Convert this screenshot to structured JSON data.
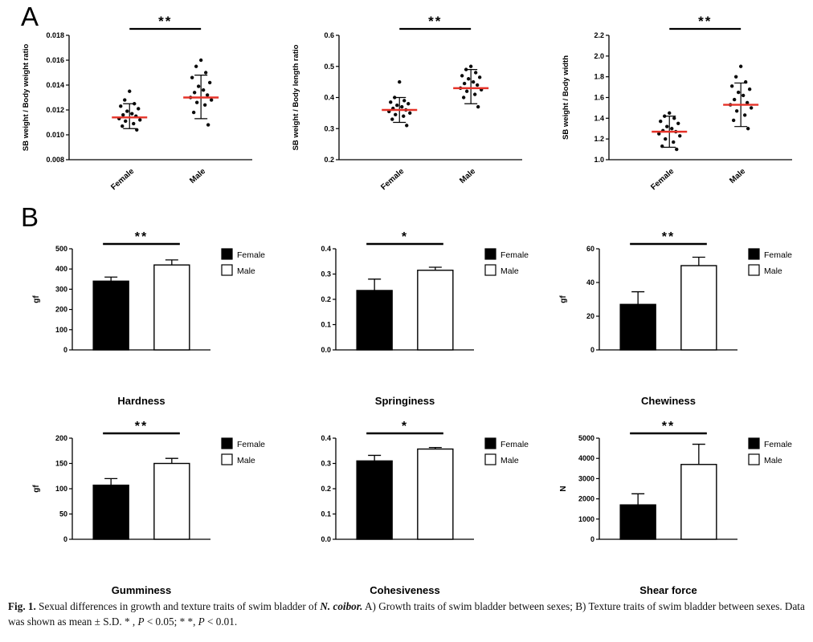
{
  "panels": {
    "a_label": "A",
    "b_label": "B"
  },
  "colors": {
    "female_fill": "#000000",
    "male_fill": "#ffffff",
    "mean_line": "#e53228",
    "axis": "#000000"
  },
  "caption": {
    "segments": [
      {
        "text": "Fig. 1.",
        "style": "bold"
      },
      {
        "text": "  Sexual differences in growth and texture traits of swim bladder of ",
        "style": "normal"
      },
      {
        "text": "N. coibor.",
        "style": "bold-italic"
      },
      {
        "text": " A) Growth traits of swim bladder between sexes; B) Texture traits of swim bladder between sexes. Data was shown as mean ± S.D. * , ",
        "style": "normal"
      },
      {
        "text": "P",
        "style": "italic"
      },
      {
        "text": " < 0.05; * *, ",
        "style": "normal"
      },
      {
        "text": "P",
        "style": "italic"
      },
      {
        "text": " < 0.01.",
        "style": "normal"
      }
    ]
  },
  "chart_data": [
    {
      "id": "sb-weight-body-weight-ratio",
      "panel": "A",
      "type": "scatter",
      "ylabel": "SB weight / Body weight ratio",
      "ylim": [
        0.008,
        0.018
      ],
      "yticks": [
        0.008,
        0.01,
        0.012,
        0.014,
        0.016,
        0.018
      ],
      "ytick_decimals": 3,
      "categories": [
        "Female",
        "Male"
      ],
      "significance": "**",
      "groups": [
        {
          "name": "Female",
          "mean": 0.0114,
          "sd_low": 0.0105,
          "sd_high": 0.0125,
          "points": [
            0.0135,
            0.0128,
            0.0125,
            0.0123,
            0.0121,
            0.0119,
            0.0117,
            0.0116,
            0.0115,
            0.0113,
            0.0112,
            0.0111,
            0.0109,
            0.0107,
            0.0104
          ]
        },
        {
          "name": "Male",
          "mean": 0.013,
          "sd_low": 0.0113,
          "sd_high": 0.0148,
          "points": [
            0.016,
            0.0155,
            0.015,
            0.0146,
            0.0142,
            0.0139,
            0.0136,
            0.0134,
            0.0132,
            0.013,
            0.0128,
            0.0126,
            0.0124,
            0.0118,
            0.0108
          ]
        }
      ]
    },
    {
      "id": "sb-weight-body-length-ratio",
      "panel": "A",
      "type": "scatter",
      "ylabel": "SB weight / Body length ratio",
      "ylim": [
        0.2,
        0.6
      ],
      "yticks": [
        0.2,
        0.3,
        0.4,
        0.5,
        0.6
      ],
      "ytick_decimals": 1,
      "categories": [
        "Female",
        "Male"
      ],
      "significance": "**",
      "groups": [
        {
          "name": "Female",
          "mean": 0.36,
          "sd_low": 0.32,
          "sd_high": 0.4,
          "points": [
            0.45,
            0.4,
            0.39,
            0.385,
            0.38,
            0.375,
            0.37,
            0.365,
            0.36,
            0.355,
            0.35,
            0.345,
            0.34,
            0.33,
            0.31
          ]
        },
        {
          "name": "Male",
          "mean": 0.43,
          "sd_low": 0.38,
          "sd_high": 0.49,
          "points": [
            0.5,
            0.49,
            0.48,
            0.47,
            0.465,
            0.46,
            0.45,
            0.445,
            0.44,
            0.43,
            0.425,
            0.42,
            0.41,
            0.4,
            0.37
          ]
        }
      ]
    },
    {
      "id": "sb-weight-body-width",
      "panel": "A",
      "type": "scatter",
      "ylabel": "SB weight / Body width",
      "ylim": [
        1.0,
        2.2
      ],
      "yticks": [
        1.0,
        1.2,
        1.4,
        1.6,
        1.8,
        2.0,
        2.2
      ],
      "ytick_decimals": 1,
      "categories": [
        "Female",
        "Male"
      ],
      "significance": "**",
      "groups": [
        {
          "name": "Female",
          "mean": 1.27,
          "sd_low": 1.12,
          "sd_high": 1.42,
          "points": [
            1.45,
            1.42,
            1.4,
            1.37,
            1.35,
            1.32,
            1.3,
            1.28,
            1.27,
            1.25,
            1.23,
            1.2,
            1.17,
            1.13,
            1.1
          ]
        },
        {
          "name": "Male",
          "mean": 1.53,
          "sd_low": 1.32,
          "sd_high": 1.74,
          "points": [
            1.9,
            1.8,
            1.75,
            1.71,
            1.68,
            1.65,
            1.62,
            1.58,
            1.55,
            1.53,
            1.5,
            1.47,
            1.43,
            1.38,
            1.3
          ]
        }
      ]
    },
    {
      "id": "hardness",
      "panel": "B",
      "type": "bar",
      "title": "Hardness",
      "ylabel": "gf",
      "ylim": [
        0,
        500
      ],
      "yticks": [
        0,
        100,
        200,
        300,
        400,
        500
      ],
      "ytick_decimals": 0,
      "categories": [
        "Female",
        "Male"
      ],
      "values": [
        340,
        420
      ],
      "errors": [
        20,
        25
      ],
      "significance": "**",
      "legend": [
        "Female",
        "Male"
      ]
    },
    {
      "id": "springiness",
      "panel": "B",
      "type": "bar",
      "title": "Springiness",
      "ylabel": "",
      "ylim": [
        0,
        0.4
      ],
      "yticks": [
        0.0,
        0.1,
        0.2,
        0.3,
        0.4
      ],
      "ytick_decimals": 1,
      "categories": [
        "Female",
        "Male"
      ],
      "values": [
        0.235,
        0.315
      ],
      "errors": [
        0.045,
        0.012
      ],
      "significance": "*",
      "legend": [
        "Female",
        "Male"
      ]
    },
    {
      "id": "chewiness",
      "panel": "B",
      "type": "bar",
      "title": "Chewiness",
      "ylabel": "gf",
      "ylim": [
        0,
        60
      ],
      "yticks": [
        0,
        20,
        40,
        60
      ],
      "ytick_decimals": 0,
      "categories": [
        "Female",
        "Male"
      ],
      "values": [
        27,
        50
      ],
      "errors": [
        7.5,
        5
      ],
      "significance": "**",
      "legend": [
        "Female",
        "Male"
      ]
    },
    {
      "id": "gumminess",
      "panel": "B",
      "type": "bar",
      "title": "Gumminess",
      "ylabel": "gf",
      "ylim": [
        0,
        200
      ],
      "yticks": [
        0,
        50,
        100,
        150,
        200
      ],
      "ytick_decimals": 0,
      "categories": [
        "Female",
        "Male"
      ],
      "values": [
        107,
        150
      ],
      "errors": [
        13,
        10
      ],
      "significance": "**",
      "legend": [
        "Female",
        "Male"
      ]
    },
    {
      "id": "cohesiveness",
      "panel": "B",
      "type": "bar",
      "title": "Cohesiveness",
      "ylabel": "",
      "ylim": [
        0,
        0.4
      ],
      "yticks": [
        0.0,
        0.1,
        0.2,
        0.3,
        0.4
      ],
      "ytick_decimals": 1,
      "categories": [
        "Female",
        "Male"
      ],
      "values": [
        0.31,
        0.357
      ],
      "errors": [
        0.022,
        0.006
      ],
      "significance": "*",
      "legend": [
        "Female",
        "Male"
      ]
    },
    {
      "id": "shear-force",
      "panel": "B",
      "type": "bar",
      "title": "Shear force",
      "ylabel": "N",
      "ylim": [
        0,
        5000
      ],
      "yticks": [
        0,
        1000,
        2000,
        3000,
        4000,
        5000
      ],
      "ytick_decimals": 0,
      "categories": [
        "Female",
        "Male"
      ],
      "values": [
        1700,
        3700
      ],
      "errors": [
        550,
        1000
      ],
      "significance": "**",
      "legend": [
        "Female",
        "Male"
      ]
    }
  ]
}
